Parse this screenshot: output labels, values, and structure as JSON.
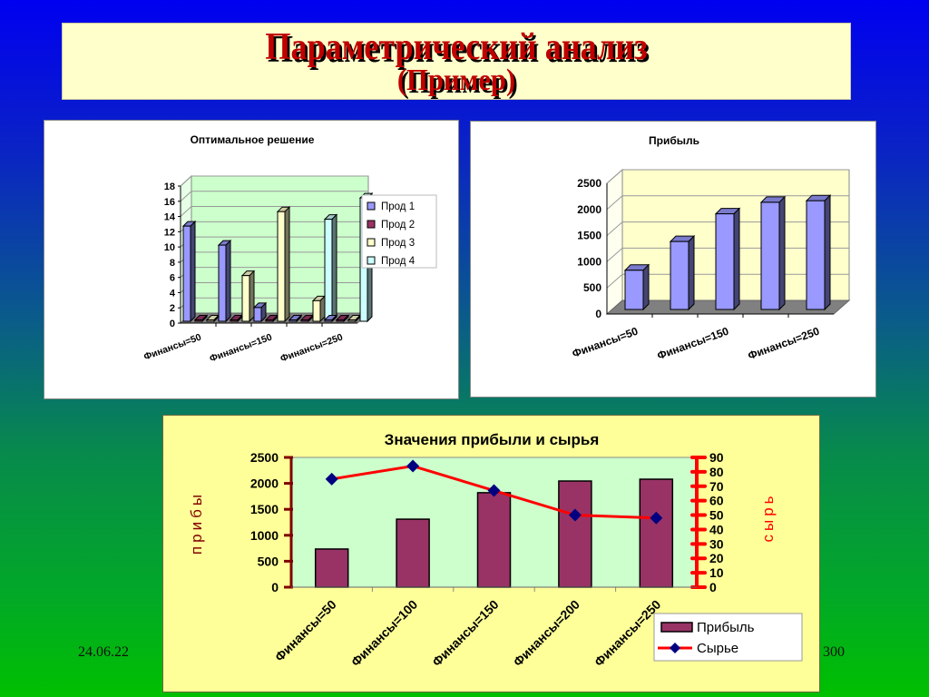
{
  "slide": {
    "title": "Параметрический анализ",
    "subtitle": "(Пример)",
    "date": "24.06.22",
    "page_number": "300"
  },
  "colors": {
    "title_red": "#c00000",
    "prod1": "#9999ff",
    "prod2": "#993366",
    "prod3": "#ffffcc",
    "prod4": "#ccffff",
    "profit_bar_3d": "#9999ff",
    "profit_bar_combo": "#993366",
    "raw_line": "#ff0000",
    "raw_marker": "#000080",
    "green_plot": "#ccffcc",
    "yellow_plot": "#ffffcc"
  },
  "chart_data": [
    {
      "type": "bar",
      "title": "Оптимальное решение",
      "xlabel": "",
      "ylabel": "",
      "categories": [
        "Финансы=50",
        "Финансы=100",
        "Финансы=150",
        "Финансы=200",
        "Финансы=250"
      ],
      "visible_tick_labels": [
        "Финансы=50",
        "Финансы=150",
        "Финансы=250"
      ],
      "series": [
        {
          "name": "Прод 1",
          "values": [
            12.5,
            10,
            1.8,
            0,
            0
          ]
        },
        {
          "name": "Прод 2",
          "values": [
            0,
            0,
            0,
            0,
            0
          ]
        },
        {
          "name": "Прод 3",
          "values": [
            0,
            6,
            14.4,
            2.7,
            0
          ]
        },
        {
          "name": "Прод 4",
          "values": [
            0,
            0,
            0,
            13.4,
            16.2
          ]
        }
      ],
      "yticks": [
        "0",
        "2",
        "4",
        "6",
        "8",
        "10",
        "12",
        "14",
        "16",
        "18"
      ],
      "ylim": [
        0,
        18
      ],
      "grid": true,
      "legend_position": "right",
      "style": "3d-clustered-column"
    },
    {
      "type": "bar",
      "title": "Прибыль",
      "xlabel": "",
      "ylabel": "",
      "categories": [
        "Финансы=50",
        "Финансы=100",
        "Финансы=150",
        "Финансы=200",
        "Финансы=250"
      ],
      "visible_tick_labels": [
        "Финансы=50",
        "Финансы=150",
        "Финансы=250"
      ],
      "values": [
        750,
        1300,
        1830,
        2050,
        2080
      ],
      "yticks": [
        "0",
        "500",
        "1000",
        "1500",
        "2000",
        "2500"
      ],
      "ylim": [
        0,
        2500
      ],
      "grid": true,
      "legend_position": "none",
      "style": "3d-column"
    },
    {
      "type": "bar",
      "title": "Значения прибыли и сырья",
      "xlabel": "",
      "ylabel": "прибы",
      "y2label": "сырь",
      "categories": [
        "Финансы=50",
        "Финансы=100",
        "Финансы=150",
        "Финансы=200",
        "Финансы=250"
      ],
      "series": [
        {
          "name": "Прибыль",
          "type": "bar",
          "axis": "left",
          "values": [
            735,
            1310,
            1820,
            2045,
            2080
          ]
        },
        {
          "name": "Сырье",
          "type": "line",
          "axis": "right",
          "values": [
            75,
            84,
            67,
            50,
            48
          ]
        }
      ],
      "yticks": [
        "0",
        "500",
        "1000",
        "1500",
        "2000",
        "2500"
      ],
      "y2ticks": [
        "0",
        "10",
        "20",
        "30",
        "40",
        "50",
        "60",
        "70",
        "80",
        "90"
      ],
      "ylim": [
        0,
        2500
      ],
      "y2lim": [
        0,
        90
      ],
      "grid": false,
      "legend_position": "bottom-right"
    }
  ]
}
